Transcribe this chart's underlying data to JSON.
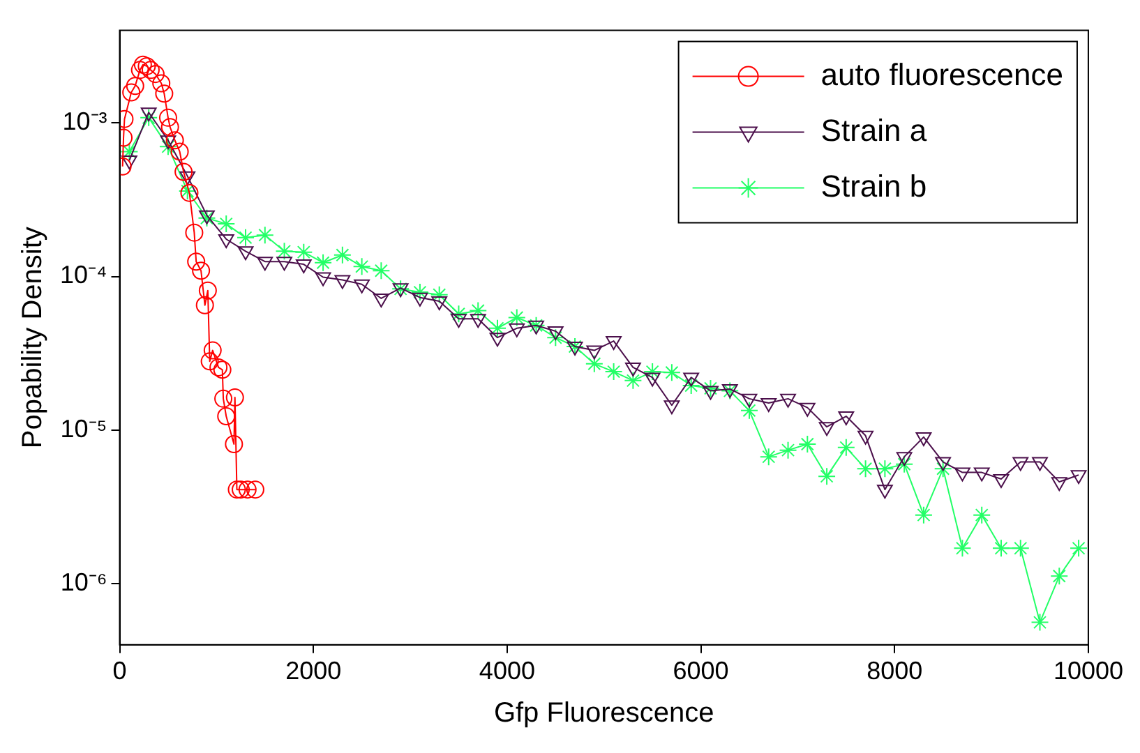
{
  "chart_data": {
    "type": "line",
    "xlabel": "Gfp Fluorescence",
    "ylabel": "Popability Density",
    "log": "y",
    "grid": false,
    "legend": "top right",
    "xlim": [
      0,
      10000
    ],
    "xticks": [
      0,
      2000,
      4000,
      6000,
      8000,
      10000
    ],
    "ylim": [
      4e-07,
      0.004
    ],
    "yticks": [
      {
        "value": 1e-06,
        "label": "10⁻⁶"
      },
      {
        "value": 1e-05,
        "label": "10⁻⁵"
      },
      {
        "value": 0.0001,
        "label": "10⁻⁴"
      },
      {
        "value": 0.001,
        "label": "10⁻³"
      }
    ],
    "series": [
      {
        "name": "auto fluorescence",
        "color": "#ff0000",
        "marker": "circle",
        "x": [
          30,
          40,
          50,
          120,
          160,
          210,
          240,
          280,
          320,
          370,
          430,
          460,
          500,
          520,
          570,
          620,
          660,
          720,
          770,
          790,
          840,
          880,
          910,
          930,
          960,
          1020,
          1060,
          1070,
          1100,
          1180,
          1190,
          1210,
          1250,
          1320,
          1400
        ],
        "values": [
          0.00052,
          0.0008,
          0.00106,
          0.00158,
          0.00174,
          0.00221,
          0.00239,
          0.00234,
          0.00221,
          0.00208,
          0.00181,
          0.00155,
          0.00108,
          0.00094,
          0.00077,
          0.00065,
          0.00048,
          0.00035,
          0.000193,
          0.000125,
          0.000109,
          6.5e-05,
          8.1e-05,
          2.8e-05,
          3.3e-05,
          2.56e-05,
          2.47e-05,
          1.6e-05,
          1.23e-05,
          8.1e-06,
          1.63e-05,
          4.1e-06,
          4.1e-06,
          4.1e-06,
          4.1e-06
        ]
      },
      {
        "name": "Strain a",
        "color": "#4b0f4b",
        "marker": "triangle",
        "x": [
          100,
          300,
          500,
          700,
          900,
          1100,
          1300,
          1500,
          1700,
          1900,
          2100,
          2300,
          2500,
          2700,
          2900,
          3100,
          3300,
          3500,
          3700,
          3900,
          4100,
          4300,
          4500,
          4700,
          4900,
          5100,
          5300,
          5500,
          5700,
          5900,
          6100,
          6300,
          6500,
          6700,
          6900,
          7100,
          7300,
          7500,
          7700,
          7900,
          8100,
          8300,
          8500,
          8700,
          8900,
          9100,
          9300,
          9500,
          9700,
          9900
        ],
        "values": [
          0.00057,
          0.00117,
          0.00077,
          0.00045,
          0.00025,
          0.000175,
          0.000146,
          0.000125,
          0.000125,
          0.00012,
          9.9e-05,
          9.5e-05,
          8.9e-05,
          7.2e-05,
          8.4e-05,
          7.3e-05,
          6.9e-05,
          5.3e-05,
          5.3e-05,
          4e-05,
          4.6e-05,
          4.8e-05,
          4.4e-05,
          3.5e-05,
          3.3e-05,
          3.8e-05,
          2.56e-05,
          2.2e-05,
          1.45e-05,
          2.2e-05,
          1.8e-05,
          1.85e-05,
          1.6e-05,
          1.5e-05,
          1.6e-05,
          1.4e-05,
          1.05e-05,
          1.23e-05,
          9.2e-06,
          4.1e-06,
          6.7e-06,
          9e-06,
          6.2e-06,
          5.3e-06,
          5.3e-06,
          4.8e-06,
          6.2e-06,
          6.2e-06,
          4.6e-06,
          5.1e-06
        ]
      },
      {
        "name": "Strain b",
        "color": "#22ff66",
        "marker": "cross",
        "x": [
          100,
          300,
          500,
          700,
          900,
          1100,
          1300,
          1500,
          1700,
          1900,
          2100,
          2300,
          2500,
          2700,
          2900,
          3100,
          3300,
          3500,
          3700,
          3900,
          4100,
          4300,
          4500,
          4700,
          4900,
          5100,
          5300,
          5500,
          5700,
          5900,
          6100,
          6300,
          6500,
          6700,
          6900,
          7100,
          7300,
          7500,
          7700,
          7900,
          8100,
          8300,
          8500,
          8700,
          8900,
          9100,
          9300,
          9500,
          9700,
          9900
        ],
        "values": [
          0.00065,
          0.00108,
          0.0007,
          0.00036,
          0.00024,
          0.00022,
          0.000179,
          0.000186,
          0.000146,
          0.000144,
          0.000123,
          0.000138,
          0.000116,
          0.000109,
          8.3e-05,
          7.9e-05,
          7.6e-05,
          5.7e-05,
          6e-05,
          4.6e-05,
          5.4e-05,
          4.8e-05,
          4e-05,
          3.5e-05,
          2.7e-05,
          2.4e-05,
          2.1e-05,
          2.4e-05,
          2.37e-05,
          1.95e-05,
          1.87e-05,
          1.8e-05,
          1.34e-05,
          6.7e-06,
          7.4e-06,
          8.1e-06,
          5e-06,
          7.7e-06,
          5.6e-06,
          5.6e-06,
          6e-06,
          2.8e-06,
          5.6e-06,
          1.7e-06,
          2.8e-06,
          1.7e-06,
          1.7e-06,
          5.6e-07,
          1.12e-06,
          1.7e-06
        ]
      }
    ]
  }
}
